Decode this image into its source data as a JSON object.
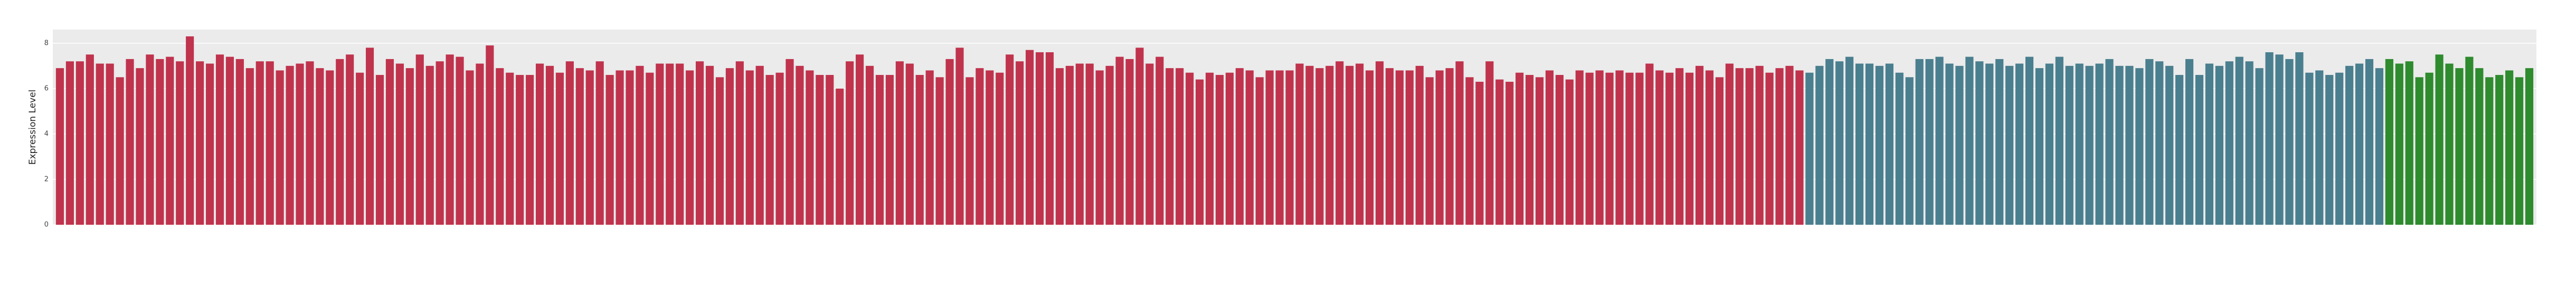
{
  "chart_data": {
    "type": "bar",
    "y_label": "Expression Level",
    "ylim": [
      0,
      8.6
    ],
    "yticks": [
      0,
      2,
      4,
      6,
      8
    ],
    "grid": true,
    "series": [
      {
        "color": "#c0334d",
        "values": [
          6.9,
          7.2,
          7.2,
          7.5,
          7.1,
          7.1,
          6.5,
          7.3,
          6.9,
          7.5,
          7.3,
          7.4,
          7.2,
          8.3,
          7.2,
          7.1,
          7.5,
          7.4,
          7.3,
          6.9,
          7.2,
          7.2,
          6.8,
          7.0,
          7.1,
          7.2,
          6.9,
          6.8,
          7.3,
          7.5,
          6.7,
          7.8,
          6.6,
          7.3,
          7.1,
          6.9,
          7.5,
          7.0,
          7.2,
          7.5,
          7.4,
          6.8,
          7.1,
          7.9,
          6.9,
          6.7,
          6.6,
          6.6,
          7.1,
          7.0,
          6.7,
          7.2,
          6.9,
          6.8,
          7.2,
          6.6,
          6.8,
          6.8,
          7.0,
          6.7,
          7.1,
          7.1,
          7.1,
          6.8,
          7.2,
          7.0,
          6.5,
          6.9,
          7.2,
          6.8,
          7.0,
          6.6,
          6.7,
          7.3,
          7.0,
          6.8,
          6.6,
          6.6,
          6.0,
          7.2,
          7.5,
          7.0,
          6.6,
          6.6,
          7.2,
          7.1,
          6.6,
          6.8,
          6.5,
          7.3,
          7.8,
          6.5,
          6.9,
          6.8,
          6.7,
          7.5,
          7.2,
          7.7,
          7.6,
          7.6,
          6.9,
          7.0,
          7.1,
          7.1,
          6.8,
          7.0,
          7.4,
          7.3,
          7.8,
          7.1,
          7.4,
          6.9,
          6.9,
          6.7,
          6.4,
          6.7,
          6.6,
          6.7,
          6.9,
          6.8,
          6.5,
          6.8,
          6.8,
          6.8,
          7.1,
          7.0,
          6.9,
          7.0,
          7.2,
          7.0,
          7.1,
          6.8,
          7.2,
          6.9,
          6.8,
          6.8,
          7.0,
          6.5,
          6.8,
          6.9,
          7.2,
          6.5,
          6.3,
          7.2,
          6.4,
          6.3,
          6.7,
          6.6,
          6.5,
          6.8,
          6.6,
          6.4,
          6.8,
          6.7,
          6.8,
          6.7,
          6.8,
          6.7,
          6.7,
          7.1,
          6.8,
          6.7,
          6.9,
          6.7,
          7.0,
          6.8,
          6.5,
          7.1,
          6.9,
          6.9,
          7.0,
          6.7,
          6.9,
          7.0,
          6.8
        ]
      },
      {
        "color": "#4a7f8f",
        "values": [
          6.7,
          7.0,
          7.3,
          7.2,
          7.4,
          7.1,
          7.1,
          7.0,
          7.1,
          6.7,
          6.5,
          7.3,
          7.3,
          7.4,
          7.1,
          7.0,
          7.4,
          7.2,
          7.1,
          7.3,
          7.0,
          7.1,
          7.4,
          6.9,
          7.1,
          7.4,
          7.0,
          7.1,
          7.0,
          7.1,
          7.3,
          7.0,
          7.0,
          6.9,
          7.3,
          7.2,
          7.0,
          6.6,
          7.3,
          6.6,
          7.1,
          7.0,
          7.2,
          7.4,
          7.2,
          6.9,
          7.6,
          7.5,
          7.3,
          7.6,
          6.7,
          6.8,
          6.6,
          6.7,
          7.0,
          7.1,
          7.3,
          6.9
        ]
      },
      {
        "color": "#2e8b2e",
        "values": [
          7.3,
          7.1,
          7.2,
          6.5,
          6.7,
          7.5,
          7.1,
          6.9,
          7.4,
          6.9,
          6.5,
          6.6,
          6.8,
          6.5,
          6.9
        ]
      }
    ]
  }
}
